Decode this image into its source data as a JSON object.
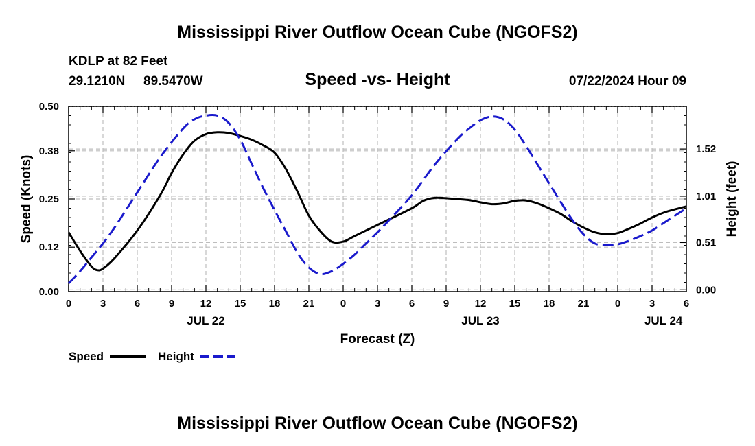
{
  "header": {
    "title": "Mississippi River Outflow Ocean Cube (NGOFS2)",
    "station_line": "KDLP at 82 Feet",
    "lat": "29.1210N",
    "lon": "89.5470W",
    "subtitle": "Speed -vs- Height",
    "timestamp": "07/22/2024 Hour 09"
  },
  "footer": {
    "title": "Mississippi River Outflow Ocean Cube (NGOFS2)"
  },
  "colors": {
    "speed": "#000000",
    "height": "#1a1acc",
    "grid": "#bdbdbd"
  },
  "chart_data": {
    "type": "line",
    "title": "Speed -vs- Height",
    "xlabel": "Forecast (Z)",
    "ylabel": "Speed (Knots)",
    "ylabel_right": "Height (feet)",
    "x_range": [
      0,
      54
    ],
    "x_ticks": [
      0,
      3,
      6,
      9,
      12,
      15,
      18,
      21,
      24,
      27,
      30,
      33,
      36,
      39,
      42,
      45,
      48,
      51,
      54
    ],
    "x_tick_labels": [
      "0",
      "3",
      "6",
      "9",
      "12",
      "15",
      "18",
      "21",
      "0",
      "3",
      "6",
      "9",
      "12",
      "15",
      "18",
      "21",
      "0",
      "3",
      "6"
    ],
    "date_labels": [
      {
        "x": 12,
        "label": "JUL 22"
      },
      {
        "x": 36,
        "label": "JUL 23"
      },
      {
        "x": 52,
        "label": "JUL 24"
      }
    ],
    "y_left": {
      "range": [
        0,
        0.5
      ],
      "ticks": [
        0.0,
        0.12,
        0.25,
        0.38,
        0.5
      ],
      "tick_labels": [
        "0.00",
        "0.12",
        "0.25",
        "0.38",
        "0.50"
      ]
    },
    "y_right": {
      "range": [
        -0.02,
        1.98
      ],
      "ticks": [
        0.0,
        0.51,
        1.01,
        1.52
      ],
      "tick_labels": [
        "0.00",
        "0.51",
        "1.01",
        "1.52"
      ]
    },
    "series": [
      {
        "name": "Speed",
        "axis": "left",
        "style": "solid",
        "x": [
          0,
          1,
          2,
          2.5,
          3,
          4,
          6,
          8,
          9,
          10,
          11,
          12,
          13,
          14,
          15,
          16,
          17,
          18,
          19,
          20,
          21,
          22,
          23,
          24,
          25,
          27,
          30,
          31,
          32,
          33,
          35,
          36,
          37,
          38,
          39,
          40,
          41,
          42,
          43,
          44,
          45,
          46,
          47,
          48,
          49,
          50,
          51,
          52,
          53,
          54
        ],
        "values": [
          0.16,
          0.11,
          0.068,
          0.058,
          0.062,
          0.09,
          0.165,
          0.26,
          0.32,
          0.37,
          0.407,
          0.425,
          0.43,
          0.428,
          0.42,
          0.41,
          0.395,
          0.375,
          0.33,
          0.27,
          0.205,
          0.163,
          0.135,
          0.135,
          0.15,
          0.18,
          0.225,
          0.245,
          0.253,
          0.252,
          0.247,
          0.241,
          0.236,
          0.238,
          0.245,
          0.246,
          0.238,
          0.225,
          0.21,
          0.19,
          0.173,
          0.16,
          0.155,
          0.158,
          0.17,
          0.184,
          0.2,
          0.213,
          0.222,
          0.23
        ]
      },
      {
        "name": "Height",
        "axis": "right",
        "style": "dashed",
        "x": [
          0,
          1,
          2,
          3,
          4,
          6,
          8,
          10,
          11,
          12,
          13,
          14,
          15,
          16,
          17,
          18,
          19,
          20,
          21,
          22,
          23,
          24,
          25,
          26,
          27,
          28,
          30,
          32,
          34,
          35,
          36,
          37,
          38,
          39,
          40,
          41,
          42,
          43,
          44,
          45,
          46,
          47,
          48,
          49,
          50,
          51,
          52,
          53,
          54
        ],
        "values": [
          0.07,
          0.2,
          0.35,
          0.5,
          0.67,
          1.05,
          1.43,
          1.74,
          1.84,
          1.88,
          1.88,
          1.8,
          1.62,
          1.36,
          1.1,
          0.86,
          0.63,
          0.4,
          0.24,
          0.17,
          0.2,
          0.28,
          0.38,
          0.5,
          0.62,
          0.75,
          1.02,
          1.35,
          1.63,
          1.74,
          1.83,
          1.87,
          1.84,
          1.73,
          1.55,
          1.35,
          1.15,
          0.95,
          0.76,
          0.6,
          0.5,
          0.48,
          0.49,
          0.53,
          0.58,
          0.64,
          0.72,
          0.8,
          0.88
        ]
      }
    ],
    "legend": [
      {
        "label": "Speed",
        "style": "solid"
      },
      {
        "label": "Height",
        "style": "dashed"
      }
    ],
    "legend_position": "bottom-left",
    "grid": true
  }
}
